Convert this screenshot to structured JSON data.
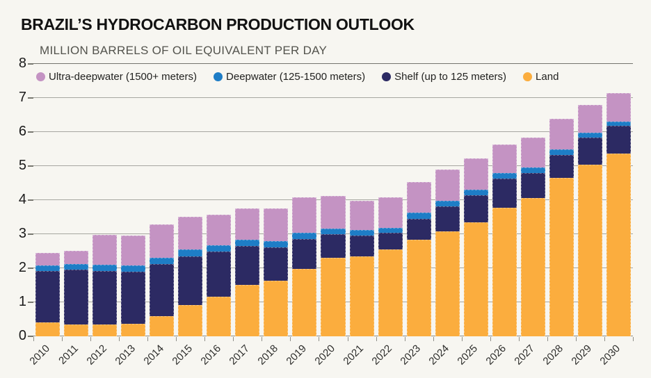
{
  "header": {
    "title": "BRAZIL’S HYDROCARBON PRODUCTION OUTLOOK",
    "subtitle": "MILLION BARRELS OF OIL EQUIVALENT PER DAY"
  },
  "colors": {
    "background": "#f7f6f1",
    "ultra_deepwater": "#c493c3",
    "deepwater": "#1e7dc6",
    "shelf": "#2c2a63",
    "land": "#fbad3e",
    "gridline": "#a6a6a0",
    "axis_text": "#1a1a1a"
  },
  "chart_data": {
    "type": "bar",
    "stacked": true,
    "title": "BRAZIL’S HYDROCARBON PRODUCTION OUTLOOK",
    "ylabel": "MILLION BARRELS OF OIL EQUIVALENT PER DAY",
    "xlabel": "",
    "ylim": [
      0,
      8
    ],
    "yticks": [
      0,
      1,
      2,
      3,
      4,
      5,
      6,
      7,
      8
    ],
    "grid": true,
    "legend_position": "top",
    "categories": [
      "2010",
      "2011",
      "2012",
      "2013",
      "2014",
      "2015",
      "2016",
      "2017",
      "2018",
      "2019",
      "2020",
      "2021",
      "2022",
      "2023",
      "2024",
      "2025",
      "2026",
      "2027",
      "2028",
      "2029",
      "2030"
    ],
    "series": [
      {
        "name": "Land",
        "color": "#fbad3e",
        "values": [
          0.4,
          0.35,
          0.35,
          0.36,
          0.6,
          0.92,
          1.16,
          1.5,
          1.63,
          1.97,
          2.31,
          2.34,
          2.56,
          2.84,
          3.09,
          3.35,
          3.77,
          4.06,
          4.66,
          5.04,
          5.37
        ]
      },
      {
        "name": "Shelf (up to 125 meters)",
        "color": "#2c2a63",
        "values": [
          1.52,
          1.62,
          1.58,
          1.54,
          1.54,
          1.42,
          1.33,
          1.15,
          0.98,
          0.87,
          0.7,
          0.61,
          0.49,
          0.62,
          0.74,
          0.8,
          0.86,
          0.73,
          0.67,
          0.8,
          0.82
        ]
      },
      {
        "name": "Deepwater (125-1500 meters)",
        "color": "#1e7dc6",
        "values": [
          0.16,
          0.17,
          0.19,
          0.18,
          0.18,
          0.21,
          0.19,
          0.18,
          0.19,
          0.18,
          0.16,
          0.16,
          0.15,
          0.18,
          0.17,
          0.16,
          0.16,
          0.16,
          0.17,
          0.15,
          0.12
        ]
      },
      {
        "name": "Ultra-deepwater (1500+ meters)",
        "color": "#c493c3",
        "values": [
          0.37,
          0.39,
          0.87,
          0.88,
          0.98,
          0.96,
          0.89,
          0.91,
          0.96,
          1.04,
          0.96,
          0.86,
          0.89,
          0.89,
          0.92,
          0.92,
          0.83,
          0.87,
          0.89,
          0.82,
          0.84
        ]
      }
    ],
    "legend_order": [
      "Ultra-deepwater (1500+ meters)",
      "Deepwater (125-1500 meters)",
      "Shelf (up to 125 meters)",
      "Land"
    ]
  }
}
